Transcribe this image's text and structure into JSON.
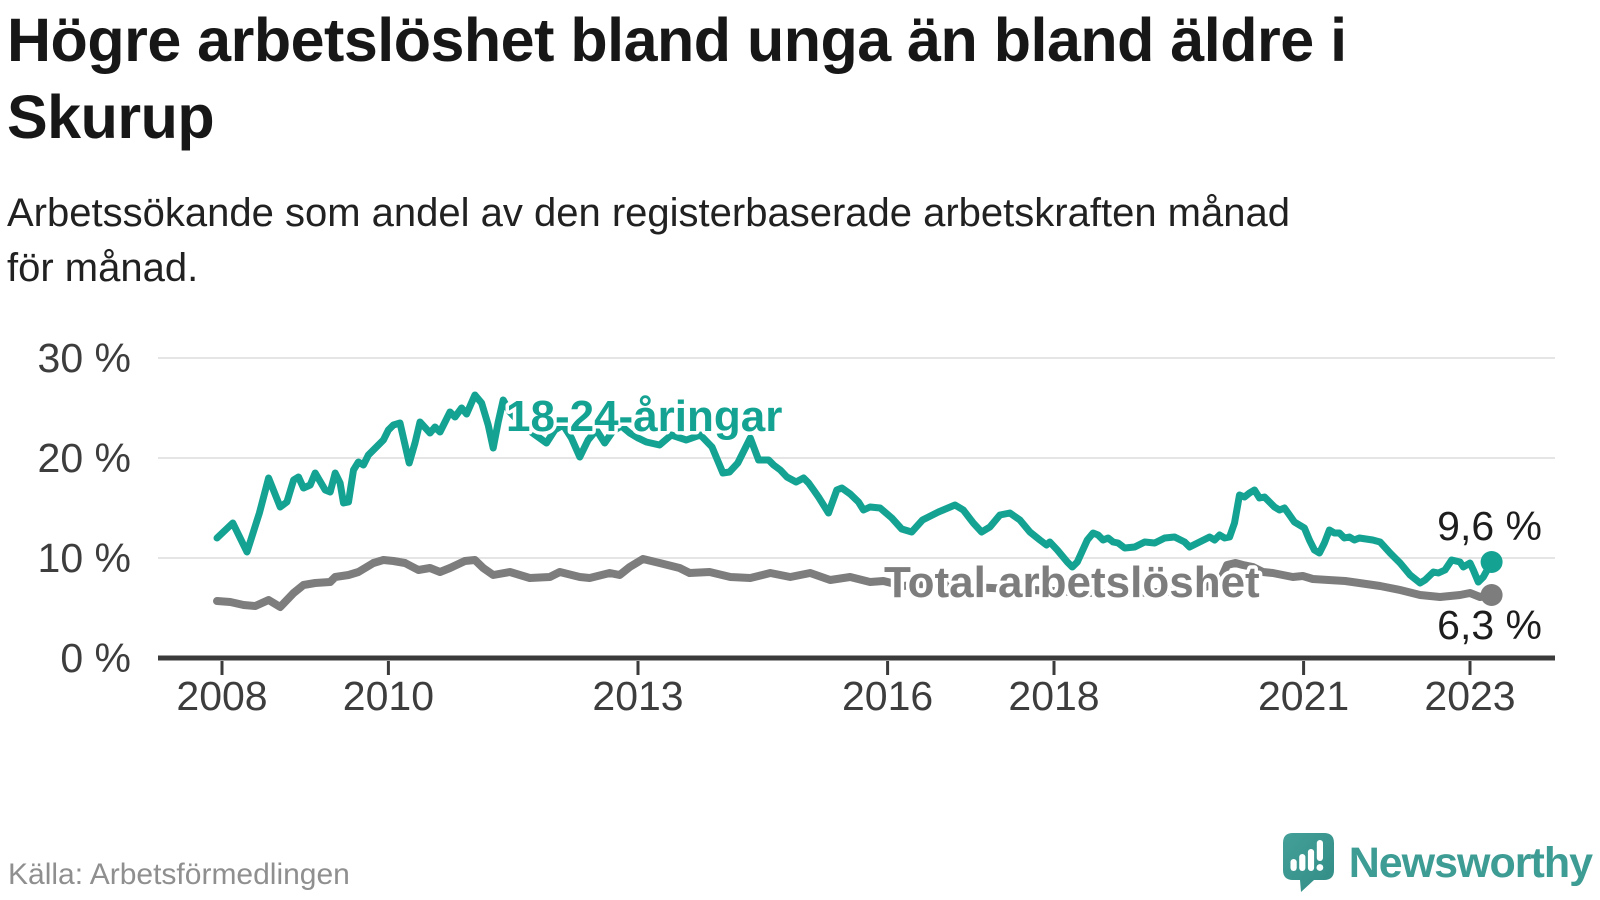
{
  "chart_data": {
    "type": "line",
    "title": "Högre arbetslöshet bland unga än bland äldre i\nSkurup",
    "subtitle": "Arbetssökande som andel av den registerbaserade arbetskraften månad\nför månad.",
    "unit": "%",
    "x_encoding": "decimal_year",
    "grid": true,
    "legend_position": "inline-labels",
    "x_axis": {
      "tick_labels": [
        "2008",
        "2010",
        "2013",
        "2016",
        "2018",
        "2021",
        "2023"
      ],
      "tick_values": [
        2008,
        2010,
        2013,
        2016,
        2018,
        2021,
        2023
      ],
      "range": [
        2007.2,
        2024.0
      ]
    },
    "y_axis": {
      "tick_labels": [
        "30 %",
        "20 %",
        "10 %",
        "0 %"
      ],
      "tick_values": [
        30,
        20,
        10,
        0
      ],
      "range": [
        0,
        32
      ]
    },
    "series": [
      {
        "name": "18-24-åringar",
        "color": "#14a392",
        "end_label": "9,6 %",
        "end_value": 9.6,
        "points": [
          [
            2007.94,
            12.0
          ],
          [
            2008.13,
            13.5
          ],
          [
            2008.3,
            10.6
          ],
          [
            2008.45,
            14.5
          ],
          [
            2008.56,
            18.0
          ],
          [
            2008.7,
            15.1
          ],
          [
            2008.78,
            15.6
          ],
          [
            2008.86,
            17.8
          ],
          [
            2008.92,
            18.1
          ],
          [
            2008.98,
            17.0
          ],
          [
            2009.06,
            17.3
          ],
          [
            2009.12,
            18.5
          ],
          [
            2009.24,
            16.8
          ],
          [
            2009.3,
            16.6
          ],
          [
            2009.36,
            18.5
          ],
          [
            2009.42,
            17.5
          ],
          [
            2009.46,
            15.5
          ],
          [
            2009.52,
            15.6
          ],
          [
            2009.58,
            18.8
          ],
          [
            2009.64,
            19.6
          ],
          [
            2009.7,
            19.3
          ],
          [
            2009.76,
            20.3
          ],
          [
            2009.88,
            21.3
          ],
          [
            2009.94,
            21.8
          ],
          [
            2010.0,
            22.8
          ],
          [
            2010.06,
            23.3
          ],
          [
            2010.14,
            23.5
          ],
          [
            2010.25,
            19.5
          ],
          [
            2010.32,
            21.5
          ],
          [
            2010.38,
            23.6
          ],
          [
            2010.5,
            22.5
          ],
          [
            2010.56,
            23.1
          ],
          [
            2010.62,
            22.6
          ],
          [
            2010.74,
            24.6
          ],
          [
            2010.8,
            24.1
          ],
          [
            2010.88,
            25.0
          ],
          [
            2010.94,
            24.4
          ],
          [
            2011.04,
            26.3
          ],
          [
            2011.12,
            25.5
          ],
          [
            2011.2,
            23.3
          ],
          [
            2011.26,
            21.0
          ],
          [
            2011.32,
            23.6
          ],
          [
            2011.38,
            25.8
          ],
          [
            2011.46,
            24.6
          ],
          [
            2011.55,
            23.8
          ],
          [
            2011.65,
            23.0
          ],
          [
            2011.75,
            22.4
          ],
          [
            2011.9,
            21.5
          ],
          [
            2012.0,
            22.8
          ],
          [
            2012.1,
            23.3
          ],
          [
            2012.2,
            22.0
          ],
          [
            2012.3,
            20.1
          ],
          [
            2012.4,
            21.8
          ],
          [
            2012.5,
            22.8
          ],
          [
            2012.6,
            21.5
          ],
          [
            2012.7,
            22.7
          ],
          [
            2012.8,
            23.2
          ],
          [
            2012.9,
            22.5
          ],
          [
            2013.0,
            22.0
          ],
          [
            2013.1,
            21.6
          ],
          [
            2013.26,
            21.3
          ],
          [
            2013.4,
            22.3
          ],
          [
            2013.58,
            21.8
          ],
          [
            2013.75,
            22.3
          ],
          [
            2013.89,
            21.1
          ],
          [
            2014.02,
            18.5
          ],
          [
            2014.1,
            18.6
          ],
          [
            2014.2,
            19.5
          ],
          [
            2014.35,
            22.0
          ],
          [
            2014.45,
            19.8
          ],
          [
            2014.57,
            19.8
          ],
          [
            2014.63,
            19.3
          ],
          [
            2014.71,
            18.8
          ],
          [
            2014.79,
            18.1
          ],
          [
            2014.9,
            17.6
          ],
          [
            2014.99,
            18.0
          ],
          [
            2015.05,
            17.5
          ],
          [
            2015.11,
            16.8
          ],
          [
            2015.17,
            16.1
          ],
          [
            2015.29,
            14.5
          ],
          [
            2015.39,
            16.8
          ],
          [
            2015.45,
            17.0
          ],
          [
            2015.55,
            16.4
          ],
          [
            2015.65,
            15.6
          ],
          [
            2015.71,
            14.8
          ],
          [
            2015.79,
            15.1
          ],
          [
            2015.91,
            15.0
          ],
          [
            2016.05,
            14.0
          ],
          [
            2016.17,
            12.9
          ],
          [
            2016.29,
            12.6
          ],
          [
            2016.42,
            13.8
          ],
          [
            2016.61,
            14.6
          ],
          [
            2016.81,
            15.3
          ],
          [
            2016.91,
            14.8
          ],
          [
            2017.03,
            13.5
          ],
          [
            2017.13,
            12.6
          ],
          [
            2017.23,
            13.1
          ],
          [
            2017.35,
            14.3
          ],
          [
            2017.47,
            14.5
          ],
          [
            2017.59,
            13.8
          ],
          [
            2017.71,
            12.6
          ],
          [
            2017.83,
            11.8
          ],
          [
            2017.91,
            11.3
          ],
          [
            2017.95,
            11.6
          ],
          [
            2018.04,
            10.8
          ],
          [
            2018.16,
            9.6
          ],
          [
            2018.22,
            9.1
          ],
          [
            2018.28,
            9.6
          ],
          [
            2018.4,
            11.8
          ],
          [
            2018.47,
            12.5
          ],
          [
            2018.53,
            12.3
          ],
          [
            2018.59,
            11.8
          ],
          [
            2018.65,
            12.0
          ],
          [
            2018.71,
            11.6
          ],
          [
            2018.77,
            11.5
          ],
          [
            2018.85,
            11.0
          ],
          [
            2018.97,
            11.1
          ],
          [
            2019.09,
            11.6
          ],
          [
            2019.21,
            11.5
          ],
          [
            2019.33,
            12.0
          ],
          [
            2019.45,
            12.1
          ],
          [
            2019.57,
            11.6
          ],
          [
            2019.63,
            11.1
          ],
          [
            2019.75,
            11.6
          ],
          [
            2019.87,
            12.1
          ],
          [
            2019.93,
            11.8
          ],
          [
            2019.99,
            12.3
          ],
          [
            2020.05,
            12.0
          ],
          [
            2020.11,
            12.1
          ],
          [
            2020.17,
            13.5
          ],
          [
            2020.23,
            16.3
          ],
          [
            2020.29,
            16.1
          ],
          [
            2020.35,
            16.5
          ],
          [
            2020.41,
            16.8
          ],
          [
            2020.47,
            16.0
          ],
          [
            2020.53,
            16.1
          ],
          [
            2020.59,
            15.6
          ],
          [
            2020.65,
            15.1
          ],
          [
            2020.71,
            14.8
          ],
          [
            2020.77,
            15.0
          ],
          [
            2020.83,
            14.3
          ],
          [
            2020.89,
            13.6
          ],
          [
            2020.95,
            13.3
          ],
          [
            2021.01,
            13.0
          ],
          [
            2021.07,
            11.8
          ],
          [
            2021.13,
            10.8
          ],
          [
            2021.19,
            10.5
          ],
          [
            2021.25,
            11.5
          ],
          [
            2021.31,
            12.8
          ],
          [
            2021.37,
            12.5
          ],
          [
            2021.43,
            12.5
          ],
          [
            2021.49,
            12.0
          ],
          [
            2021.55,
            12.1
          ],
          [
            2021.61,
            11.8
          ],
          [
            2021.67,
            12.0
          ],
          [
            2021.83,
            11.8
          ],
          [
            2021.92,
            11.6
          ],
          [
            2022.04,
            10.5
          ],
          [
            2022.16,
            9.5
          ],
          [
            2022.28,
            8.3
          ],
          [
            2022.4,
            7.5
          ],
          [
            2022.46,
            7.8
          ],
          [
            2022.56,
            8.6
          ],
          [
            2022.62,
            8.5
          ],
          [
            2022.7,
            8.8
          ],
          [
            2022.78,
            9.8
          ],
          [
            2022.88,
            9.6
          ],
          [
            2022.92,
            9.1
          ],
          [
            2023.0,
            9.5
          ],
          [
            2023.04,
            8.8
          ],
          [
            2023.1,
            7.6
          ],
          [
            2023.16,
            8.1
          ],
          [
            2023.26,
            9.6
          ]
        ]
      },
      {
        "name": "Total arbetslöshet",
        "color": "#7d7d7d",
        "end_label": "6,3 %",
        "end_value": 6.3,
        "points": [
          [
            2007.94,
            5.7
          ],
          [
            2008.1,
            5.6
          ],
          [
            2008.26,
            5.3
          ],
          [
            2008.4,
            5.2
          ],
          [
            2008.56,
            5.8
          ],
          [
            2008.7,
            5.1
          ],
          [
            2008.86,
            6.5
          ],
          [
            2008.98,
            7.3
          ],
          [
            2009.12,
            7.5
          ],
          [
            2009.3,
            7.6
          ],
          [
            2009.36,
            8.1
          ],
          [
            2009.52,
            8.3
          ],
          [
            2009.64,
            8.6
          ],
          [
            2009.82,
            9.5
          ],
          [
            2009.94,
            9.8
          ],
          [
            2010.06,
            9.7
          ],
          [
            2010.2,
            9.5
          ],
          [
            2010.36,
            8.8
          ],
          [
            2010.5,
            9.0
          ],
          [
            2010.62,
            8.6
          ],
          [
            2010.74,
            9.0
          ],
          [
            2010.92,
            9.7
          ],
          [
            2011.04,
            9.8
          ],
          [
            2011.14,
            9.0
          ],
          [
            2011.26,
            8.3
          ],
          [
            2011.46,
            8.6
          ],
          [
            2011.7,
            8.0
          ],
          [
            2011.94,
            8.1
          ],
          [
            2012.06,
            8.6
          ],
          [
            2012.3,
            8.1
          ],
          [
            2012.42,
            8.0
          ],
          [
            2012.66,
            8.5
          ],
          [
            2012.78,
            8.3
          ],
          [
            2012.9,
            9.1
          ],
          [
            2013.06,
            9.9
          ],
          [
            2013.26,
            9.5
          ],
          [
            2013.5,
            9.0
          ],
          [
            2013.62,
            8.5
          ],
          [
            2013.86,
            8.6
          ],
          [
            2014.11,
            8.1
          ],
          [
            2014.35,
            8.0
          ],
          [
            2014.59,
            8.5
          ],
          [
            2014.83,
            8.1
          ],
          [
            2015.07,
            8.5
          ],
          [
            2015.31,
            7.8
          ],
          [
            2015.55,
            8.1
          ],
          [
            2015.79,
            7.6
          ],
          [
            2015.95,
            7.7
          ],
          [
            2016.19,
            7.2
          ],
          [
            2016.4,
            7.4
          ],
          [
            2016.6,
            7.2
          ],
          [
            2016.8,
            7.3
          ],
          [
            2017.0,
            7.1
          ],
          [
            2017.25,
            7.0
          ],
          [
            2017.5,
            6.9
          ],
          [
            2017.75,
            6.8
          ],
          [
            2018.0,
            6.7
          ],
          [
            2018.25,
            6.6
          ],
          [
            2018.5,
            6.5
          ],
          [
            2018.75,
            6.5
          ],
          [
            2019.0,
            6.5
          ],
          [
            2019.25,
            6.6
          ],
          [
            2019.5,
            6.7
          ],
          [
            2019.75,
            6.9
          ],
          [
            2019.99,
            7.6
          ],
          [
            2020.08,
            9.3
          ],
          [
            2020.18,
            9.5
          ],
          [
            2020.27,
            9.3
          ],
          [
            2020.39,
            9.1
          ],
          [
            2020.51,
            8.6
          ],
          [
            2020.63,
            8.5
          ],
          [
            2020.75,
            8.3
          ],
          [
            2020.87,
            8.1
          ],
          [
            2020.99,
            8.2
          ],
          [
            2021.11,
            7.9
          ],
          [
            2021.3,
            7.8
          ],
          [
            2021.5,
            7.7
          ],
          [
            2021.67,
            7.5
          ],
          [
            2021.92,
            7.2
          ],
          [
            2022.16,
            6.8
          ],
          [
            2022.4,
            6.3
          ],
          [
            2022.64,
            6.1
          ],
          [
            2022.88,
            6.3
          ],
          [
            2023.0,
            6.5
          ],
          [
            2023.12,
            6.1
          ],
          [
            2023.26,
            6.3
          ]
        ]
      }
    ]
  },
  "source_note": "Källa: Arbetsförmedlingen",
  "branding": {
    "wordmark": "Newsworthy",
    "logo_icon": "speech-bubble-bar-chart-icon",
    "brand_color": "#3d9c94"
  }
}
